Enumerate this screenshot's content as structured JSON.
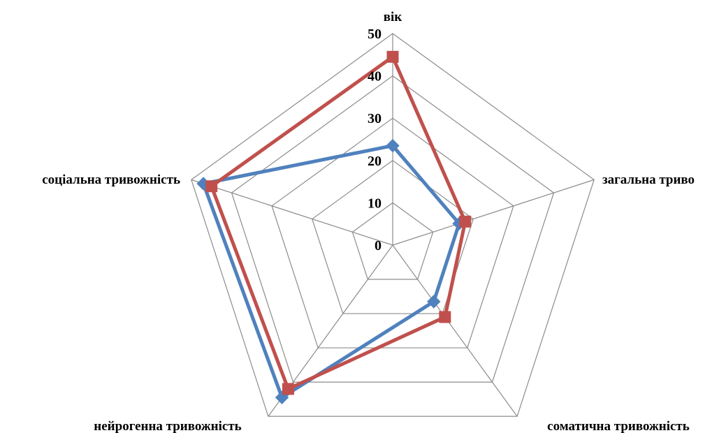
{
  "chart_data": {
    "type": "radar",
    "axes": [
      "вік",
      "загальна тривожність",
      "соматична тривожність",
      "нейрогенна тривожність",
      "соціальна тривожність"
    ],
    "axis_labels_shown": [
      "вік",
      "загальна триво",
      "соматична тривожність",
      "нейрогенна тривожність",
      "соціальна тривожність"
    ],
    "ticks": [
      "0",
      "10",
      "20",
      "30",
      "40",
      "50"
    ],
    "rlim": [
      0,
      50
    ],
    "grid": true,
    "legend": "none",
    "series": [
      {
        "color": "#4F81BD",
        "marker": "diamond",
        "values": [
          23.5,
          16.5,
          16.5,
          44.5,
          47
        ]
      },
      {
        "color": "#C0504D",
        "marker": "square",
        "values": [
          44.5,
          18,
          21,
          42,
          45
        ]
      }
    ]
  }
}
